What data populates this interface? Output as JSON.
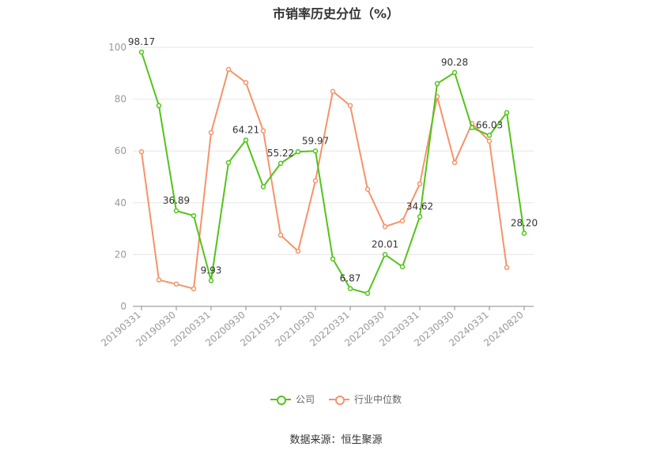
{
  "chart_data": {
    "type": "line",
    "title": "市销率历史分位（%）",
    "x_tick_labels": [
      "20190331",
      "20190930",
      "20200331",
      "20200930",
      "20210331",
      "20210930",
      "20220331",
      "20220930",
      "20230331",
      "20230930",
      "20240331",
      "20240820"
    ],
    "ylim": [
      0,
      100
    ],
    "y_ticks": [
      0,
      20,
      40,
      60,
      80,
      100
    ],
    "grid": true,
    "legend_position": "bottom",
    "series": [
      {
        "name": "公司",
        "color": "#52c41a",
        "values": [
          98.17,
          77.5,
          36.89,
          35.0,
          9.93,
          55.5,
          64.21,
          46.2,
          55.22,
          59.7,
          59.97,
          18.3,
          6.87,
          5.0,
          20.01,
          15.3,
          34.62,
          86.0,
          90.28,
          69.0,
          66.03,
          74.8,
          28.2
        ],
        "data_labels": {
          "0": "98.17",
          "2": "36.89",
          "4": "9.93",
          "6": "64.21",
          "8": "55.22",
          "10": "59.97",
          "12": "6.87",
          "14": "20.01",
          "16": "34.62",
          "18": "90.28",
          "20": "66.03",
          "22": "28.20"
        }
      },
      {
        "name": "行业中位数",
        "color": "#f5936a",
        "values": [
          59.7,
          10.2,
          8.6,
          6.8,
          67.1,
          91.5,
          86.4,
          67.8,
          27.5,
          21.3,
          48.5,
          83.0,
          77.5,
          45.2,
          30.8,
          33.0,
          47.3,
          81.0,
          55.5,
          70.6,
          63.8,
          15.0,
          null
        ]
      }
    ]
  },
  "source_text": "数据来源：恒生聚源"
}
